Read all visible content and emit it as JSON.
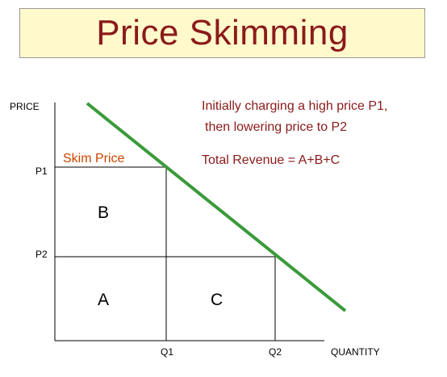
{
  "title": "Price Skimming",
  "axes": {
    "y_label": "PRICE",
    "x_label": "QUANTITY",
    "p1": "P1",
    "p2": "P2",
    "q1": "Q1",
    "q2": "Q2"
  },
  "regions": {
    "a": "A",
    "b": "B",
    "c": "C"
  },
  "skim_label": "Skim Price",
  "notes": {
    "line1": "Initially charging a high price P1,",
    "line2": "then lowering price to P2",
    "revenue": "Total Revenue = A+B+C"
  },
  "colors": {
    "title_bg": "#fff9cc",
    "title_text": "#8b1a1a",
    "demand_line": "#3a9a3a",
    "note_text": "#8b1a1a",
    "skim_text": "#cc4400"
  }
}
